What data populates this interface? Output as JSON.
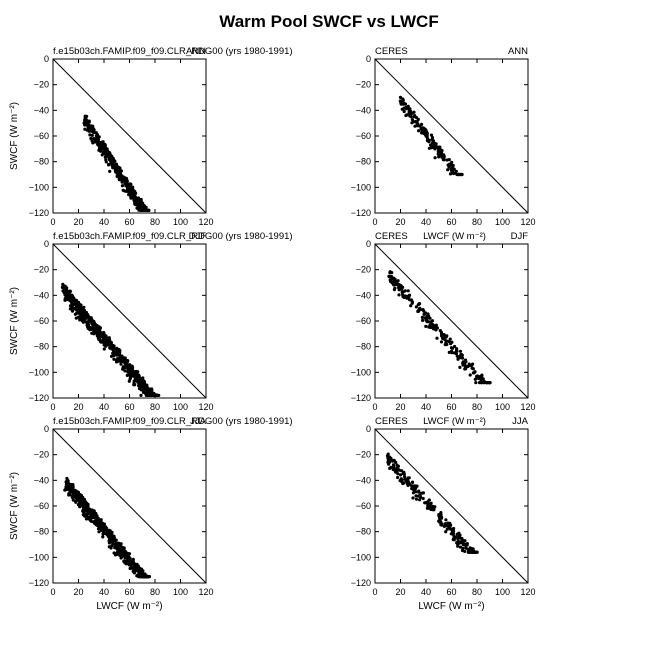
{
  "title": "Warm Pool SWCF vs LWCF",
  "ylabel": "SWCF (W m⁻²)",
  "xlabel": "LWCF (W m⁻²)",
  "chart_data": [
    {
      "type": "scatter",
      "panel": "model-ann",
      "left_label": "f.e15b03ch.FAMIP.f09_f09.CLR_RDG00 (yrs 1980-1991)",
      "right_label": "ANN",
      "xlim": [
        0,
        120
      ],
      "ylim": [
        -120,
        0
      ],
      "xticks": [
        0,
        20,
        40,
        60,
        80,
        100,
        120
      ],
      "yticks": [
        0,
        -20,
        -40,
        -60,
        -80,
        -100,
        -120
      ],
      "one_to_one_line": true,
      "show_ylabel": true,
      "show_xlabel": false,
      "cluster": {
        "x_range": [
          25,
          75
        ],
        "y_range": [
          -118,
          -42
        ],
        "n": 420
      }
    },
    {
      "type": "scatter",
      "panel": "ceres-ann",
      "left_label": "CERES",
      "right_label": "ANN",
      "xlim": [
        0,
        120
      ],
      "ylim": [
        -120,
        0
      ],
      "xticks": [
        0,
        20,
        40,
        60,
        80,
        100,
        120
      ],
      "yticks": [
        0,
        -20,
        -40,
        -60,
        -80,
        -100,
        -120
      ],
      "one_to_one_line": true,
      "show_ylabel": false,
      "show_xlabel": false,
      "cluster": {
        "x_range": [
          20,
          68
        ],
        "y_range": [
          -90,
          -27
        ],
        "n": 170
      }
    },
    {
      "type": "scatter",
      "panel": "model-djf",
      "left_label": "f.e15b03ch.FAMIP.f09_f09.CLR_RDG00 (yrs 1980-1991)",
      "right_label": "DJF",
      "xlim": [
        0,
        120
      ],
      "ylim": [
        -120,
        0
      ],
      "xticks": [
        0,
        20,
        40,
        60,
        80,
        100,
        120
      ],
      "yticks": [
        0,
        -20,
        -40,
        -60,
        -80,
        -100,
        -120
      ],
      "one_to_one_line": true,
      "show_ylabel": true,
      "show_xlabel": false,
      "cluster": {
        "x_range": [
          8,
          82
        ],
        "y_range": [
          -118,
          -30
        ],
        "n": 650
      }
    },
    {
      "type": "scatter",
      "panel": "ceres-djf",
      "left_label": "CERES",
      "right_label": "DJF",
      "xlabel_top": "LWCF (W m⁻²)",
      "xlim": [
        0,
        120
      ],
      "ylim": [
        -120,
        0
      ],
      "xticks": [
        0,
        20,
        40,
        60,
        80,
        100,
        120
      ],
      "yticks": [
        0,
        -20,
        -40,
        -60,
        -80,
        -100,
        -120
      ],
      "one_to_one_line": true,
      "show_ylabel": false,
      "show_xlabel": false,
      "cluster": {
        "x_range": [
          10,
          90
        ],
        "y_range": [
          -108,
          -18
        ],
        "n": 200
      }
    },
    {
      "type": "scatter",
      "panel": "model-jja",
      "left_label": "f.e15b03ch.FAMIP.f09_f09.CLR_RDG00 (yrs 1980-1991)",
      "right_label": "JJA",
      "xlim": [
        0,
        120
      ],
      "ylim": [
        -120,
        0
      ],
      "xticks": [
        0,
        20,
        40,
        60,
        80,
        100,
        120
      ],
      "yticks": [
        0,
        -20,
        -40,
        -60,
        -80,
        -100,
        -120
      ],
      "one_to_one_line": true,
      "show_ylabel": true,
      "show_xlabel": true,
      "cluster": {
        "x_range": [
          10,
          75
        ],
        "y_range": [
          -115,
          -36
        ],
        "n": 520
      }
    },
    {
      "type": "scatter",
      "panel": "ceres-jja",
      "left_label": "CERES",
      "right_label": "JJA",
      "xlabel_top": "LWCF (W m⁻²)",
      "xlim": [
        0,
        120
      ],
      "ylim": [
        -120,
        0
      ],
      "xticks": [
        0,
        20,
        40,
        60,
        80,
        100,
        120
      ],
      "yticks": [
        0,
        -20,
        -40,
        -60,
        -80,
        -100,
        -120
      ],
      "one_to_one_line": true,
      "show_ylabel": false,
      "show_xlabel": true,
      "cluster": {
        "x_range": [
          10,
          80
        ],
        "y_range": [
          -96,
          -18
        ],
        "n": 230
      }
    }
  ]
}
